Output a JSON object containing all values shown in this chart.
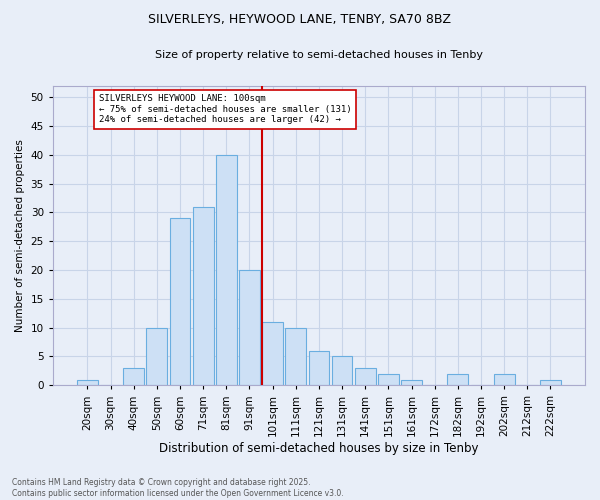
{
  "title1": "SILVERLEYS, HEYWOOD LANE, TENBY, SA70 8BZ",
  "title2": "Size of property relative to semi-detached houses in Tenby",
  "xlabel": "Distribution of semi-detached houses by size in Tenby",
  "ylabel": "Number of semi-detached properties",
  "bar_labels": [
    "20sqm",
    "30sqm",
    "40sqm",
    "50sqm",
    "60sqm",
    "71sqm",
    "81sqm",
    "91sqm",
    "101sqm",
    "111sqm",
    "121sqm",
    "131sqm",
    "141sqm",
    "151sqm",
    "161sqm",
    "172sqm",
    "182sqm",
    "192sqm",
    "202sqm",
    "212sqm",
    "222sqm"
  ],
  "bar_values": [
    1,
    0,
    3,
    10,
    29,
    31,
    40,
    20,
    11,
    10,
    6,
    5,
    3,
    2,
    1,
    0,
    2,
    0,
    2,
    0,
    1
  ],
  "bar_color": "#cde0f5",
  "bar_edge_color": "#6aaee0",
  "annotation_title": "SILVERLEYS HEYWOOD LANE: 100sqm",
  "annotation_line1": "← 75% of semi-detached houses are smaller (131)",
  "annotation_line2": "24% of semi-detached houses are larger (42) →",
  "annotation_box_color": "#ffffff",
  "annotation_box_edge_color": "#cc0000",
  "vline_color": "#cc0000",
  "vline_index": 8,
  "ylim": [
    0,
    52
  ],
  "yticks": [
    0,
    5,
    10,
    15,
    20,
    25,
    30,
    35,
    40,
    45,
    50
  ],
  "grid_color": "#c8d4e8",
  "background_color": "#e8eef8",
  "footnote1": "Contains HM Land Registry data © Crown copyright and database right 2025.",
  "footnote2": "Contains public sector information licensed under the Open Government Licence v3.0."
}
